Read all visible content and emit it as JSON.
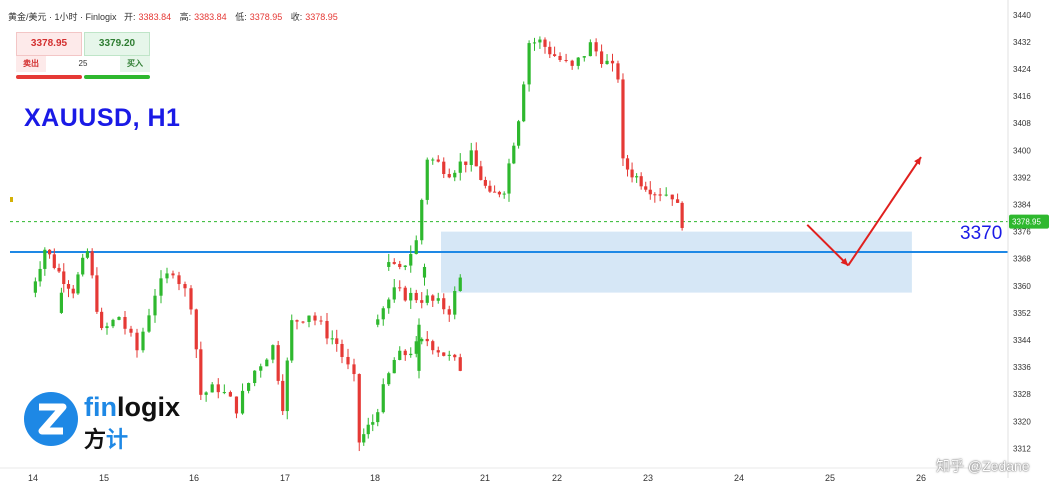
{
  "header": {
    "symbol_line": "黄金/美元 · 1小时 · Finlogix",
    "open_label": "开:",
    "open_value": "3383.84",
    "high_label": "高:",
    "high_value": "3383.84",
    "low_label": "低:",
    "low_value": "3378.95",
    "close_label": "收:",
    "close_value": "3378.95"
  },
  "trade_panel": {
    "sell_price": "3378.95",
    "buy_price": "3379.20",
    "sell_label": "卖出",
    "buy_label": "买入",
    "quantity": "25"
  },
  "title": "XAUUSD, H1",
  "level_label": "3370",
  "logo": {
    "name_a": "fin",
    "name_b": "logix",
    "sub_a": "方",
    "sub_b": "计"
  },
  "watermark": "知乎 @Zedane",
  "colors": {
    "up": "#26a69a",
    "up_bright": "#2eb82e",
    "down": "#e53935",
    "level_line": "#1e88e5",
    "zone_fill": "#cfe3f5",
    "arrow": "#e0201e",
    "accent": "#1a1ae6"
  },
  "chart_data": {
    "type": "candlestick",
    "timeframe": "H1",
    "x_ticks": [
      "14",
      "15",
      "16",
      "17",
      "18",
      "21",
      "22",
      "23",
      "24",
      "25",
      "26"
    ],
    "y_ticks": [
      3312,
      3320,
      3328,
      3336,
      3344,
      3352,
      3360,
      3368,
      3376,
      3384,
      3392,
      3400,
      3408,
      3416,
      3424,
      3432,
      3440
    ],
    "ylim": [
      3308,
      3442
    ],
    "last_price": 3378.95,
    "last_price_label": "3378.95",
    "level": 3370,
    "zone": {
      "from_date": "20.6",
      "to_date": "25.9",
      "low": 3358,
      "high": 3376
    },
    "projection": [
      {
        "date": "24.75",
        "price": 3378
      },
      {
        "date": "25.2",
        "price": 3366
      },
      {
        "date": "26.0",
        "price": 3398
      }
    ],
    "anchors": [
      [
        "13.8",
        3352
      ],
      [
        "14.0",
        3358
      ],
      [
        "14.2",
        3371
      ],
      [
        "14.4",
        3364
      ],
      [
        "14.6",
        3359
      ],
      [
        "14.8",
        3370
      ],
      [
        "15.0",
        3346
      ],
      [
        "15.2",
        3351
      ],
      [
        "15.4",
        3341
      ],
      [
        "15.6",
        3358
      ],
      [
        "15.8",
        3365
      ],
      [
        "16.0",
        3355
      ],
      [
        "16.1",
        3328
      ],
      [
        "16.3",
        3330
      ],
      [
        "16.5",
        3324
      ],
      [
        "16.7",
        3335
      ],
      [
        "16.9",
        3342
      ],
      [
        "17.0",
        3325
      ],
      [
        "17.1",
        3349
      ],
      [
        "17.3",
        3352
      ],
      [
        "17.5",
        3346
      ],
      [
        "17.6",
        3343
      ],
      [
        "17.8",
        3332
      ],
      [
        "17.85",
        3314
      ],
      [
        "18.0",
        3320
      ],
      [
        "18.2",
        3338
      ],
      [
        "18.5",
        3344
      ],
      [
        "18.8",
        3336
      ],
      [
        "19.0",
        3350
      ],
      [
        "19.2",
        3358
      ],
      [
        "19.5",
        3356
      ],
      [
        "19.7",
        3353
      ],
      [
        "19.8",
        3362
      ],
      [
        "20.1",
        3367
      ],
      [
        "20.25",
        3364
      ],
      [
        "20.4",
        3373
      ],
      [
        "20.5",
        3398
      ],
      [
        "20.7",
        3394
      ],
      [
        "20.9",
        3398
      ],
      [
        "21.1",
        3386
      ],
      [
        "21.3",
        3389
      ],
      [
        "21.5",
        3410
      ],
      [
        "21.65",
        3432
      ],
      [
        "21.8",
        3432
      ],
      [
        "22.0",
        3428
      ],
      [
        "22.2",
        3424
      ],
      [
        "22.4",
        3431
      ],
      [
        "22.7",
        3422
      ],
      [
        "22.75",
        3396
      ],
      [
        "22.9",
        3392
      ],
      [
        "23.1",
        3388
      ],
      [
        "23.3",
        3387
      ],
      [
        "23.4",
        3379
      ]
    ],
    "axis_date_map": [
      {
        "label": "14",
        "idx": 0
      },
      {
        "label": "15",
        "idx": 1
      },
      {
        "label": "16",
        "idx": 2
      },
      {
        "label": "17",
        "idx": 3
      },
      {
        "label": "18",
        "idx": 4
      },
      {
        "label": "21",
        "idx": 5
      },
      {
        "label": "22",
        "idx": 6
      },
      {
        "label": "23",
        "idx": 7
      },
      {
        "label": "24",
        "idx": 8
      },
      {
        "label": "25",
        "idx": 9
      },
      {
        "label": "26",
        "idx": 10
      }
    ]
  }
}
